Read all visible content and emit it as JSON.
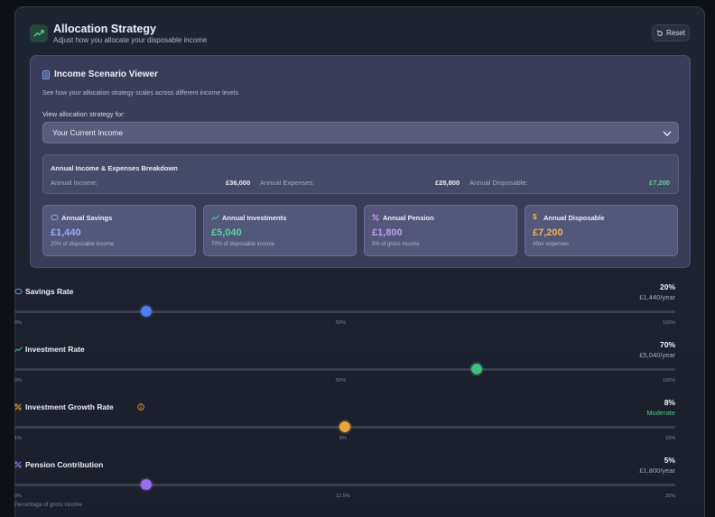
{
  "header": {
    "title": "Allocation Strategy",
    "subtitle": "Adjust how you allocate your disposable income",
    "reset_label": "Reset"
  },
  "scenario": {
    "title": "Income Scenario Viewer",
    "description": "See how your allocation strategy scales across different income levels",
    "select_label": "View allocation strategy for:",
    "selected_option": "Your Current Income",
    "breakdown": {
      "title": "Annual Income & Expenses Breakdown",
      "income_label": "Annual Income:",
      "income_value": "£36,000",
      "expenses_label": "Annual Expenses:",
      "expenses_value": "£28,800",
      "disposable_label": "Annual Disposable:",
      "disposable_value": "£7,200"
    },
    "cards": [
      {
        "title": "Annual Savings",
        "value": "£1,440",
        "sub": "20% of disposable income",
        "color": "#8fb0ff",
        "icon": "piggy-bank-icon"
      },
      {
        "title": "Annual Investments",
        "value": "£5,040",
        "sub": "70% of disposable income",
        "color": "#56d39a",
        "icon": "trending-up-icon"
      },
      {
        "title": "Annual Pension",
        "value": "£1,800",
        "sub": "5% of gross income",
        "color": "#c79cf7",
        "icon": "percent-icon"
      },
      {
        "title": "Annual Disposable",
        "value": "£7,200",
        "sub": "After expenses",
        "color": "#f2b34f",
        "icon": "dollar-icon"
      }
    ]
  },
  "sliders": [
    {
      "title": "Savings Rate",
      "value_label": "20%",
      "amount_label": "£1,440/year",
      "amount_color": "#a9aebd",
      "level": 0.2,
      "color": "#4f7ff0",
      "icon": "piggy-bank-icon",
      "icon_color": "#6f9cf8",
      "ticks": [
        "0%",
        "50%",
        "100%"
      ]
    },
    {
      "title": "Investment Rate",
      "value_label": "70%",
      "amount_label": "£5,040/year",
      "amount_color": "#a9aebd",
      "level": 0.7,
      "color": "#3fbf78",
      "icon": "trending-up-icon",
      "icon_color": "#44c682",
      "ticks": [
        "0%",
        "50%",
        "100%"
      ]
    },
    {
      "title": "Investment Growth Rate",
      "value_label": "8%",
      "amount_label": "Moderate",
      "amount_color": "#4cc985",
      "level": 0.5,
      "color": "#eda63c",
      "icon": "percent-icon",
      "icon_color": "#eda63c",
      "info": true,
      "ticks": [
        "1%",
        "8%",
        "15%"
      ]
    },
    {
      "title": "Pension Contribution",
      "value_label": "5%",
      "amount_label": "£1,800/year",
      "amount_color": "#a9aebd",
      "level": 0.2,
      "color": "#9b6ef0",
      "icon": "percent-icon",
      "icon_color": "#a77ff5",
      "ticks": [
        "0%",
        "12.5%",
        "25%"
      ]
    }
  ],
  "footnote": "Percentage of gross income"
}
